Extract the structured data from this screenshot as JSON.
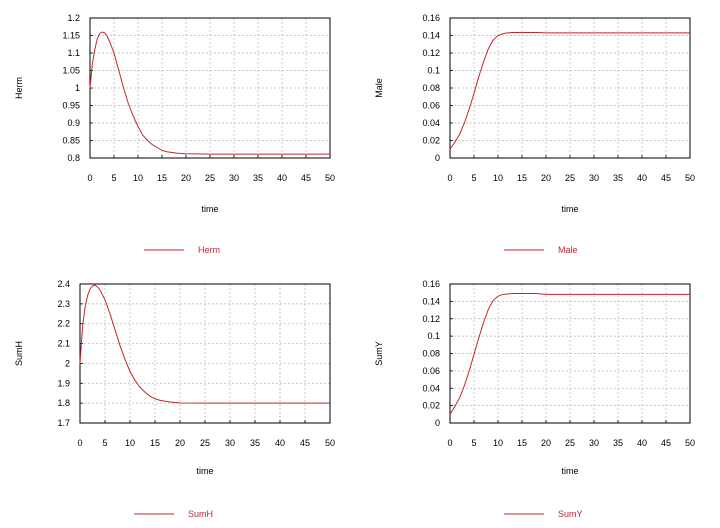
{
  "colors": {
    "series": "#c0282d",
    "frame": "#000000",
    "grid": "#b5b5b5",
    "background": "#ffffff"
  },
  "chart_data": [
    {
      "type": "line",
      "xlabel": "time",
      "ylabel": "Herm",
      "xlim": [
        0,
        50
      ],
      "ylim": [
        0.8,
        1.2
      ],
      "xticks": [
        "0",
        "5",
        "10",
        "15",
        "20",
        "25",
        "30",
        "35",
        "40",
        "45",
        "50"
      ],
      "yticks": [
        "0.8",
        "0.85",
        "0.9",
        "0.95",
        "1",
        "1.05",
        "1.1",
        "1.15",
        "1.2"
      ],
      "grid": true,
      "legend_position": "bottom",
      "series": [
        {
          "name": "Herm",
          "x": [
            0,
            0.5,
            1,
            1.5,
            2,
            2.5,
            3,
            3.5,
            4,
            5,
            6,
            7,
            8,
            9,
            10,
            11,
            12,
            13,
            14,
            15,
            16,
            18,
            20,
            25,
            30,
            40,
            50
          ],
          "y": [
            1.0,
            1.07,
            1.11,
            1.14,
            1.155,
            1.16,
            1.158,
            1.15,
            1.135,
            1.1,
            1.05,
            1.0,
            0.955,
            0.92,
            0.89,
            0.865,
            0.85,
            0.838,
            0.83,
            0.822,
            0.818,
            0.814,
            0.812,
            0.811,
            0.811,
            0.811,
            0.811
          ]
        }
      ]
    },
    {
      "type": "line",
      "xlabel": "time",
      "ylabel": "Male",
      "xlim": [
        0,
        50
      ],
      "ylim": [
        0,
        0.16
      ],
      "xticks": [
        "0",
        "5",
        "10",
        "15",
        "20",
        "25",
        "30",
        "35",
        "40",
        "45",
        "50"
      ],
      "yticks": [
        "0",
        "0.02",
        "0.04",
        "0.06",
        "0.08",
        "0.1",
        "0.12",
        "0.14",
        "0.16"
      ],
      "grid": true,
      "legend_position": "bottom",
      "series": [
        {
          "name": "Male",
          "x": [
            0,
            1,
            2,
            3,
            4,
            5,
            6,
            7,
            8,
            9,
            10,
            11,
            12,
            13,
            14,
            15,
            18,
            20,
            30,
            40,
            50
          ],
          "y": [
            0.01,
            0.018,
            0.027,
            0.04,
            0.056,
            0.074,
            0.093,
            0.11,
            0.125,
            0.135,
            0.14,
            0.142,
            0.143,
            0.1435,
            0.1435,
            0.1435,
            0.1435,
            0.143,
            0.143,
            0.143,
            0.143
          ]
        }
      ]
    },
    {
      "type": "line",
      "xlabel": "time",
      "ylabel": "SumH",
      "xlim": [
        0,
        50
      ],
      "ylim": [
        1.7,
        2.4
      ],
      "xticks": [
        "0",
        "5",
        "10",
        "15",
        "20",
        "25",
        "30",
        "35",
        "40",
        "45",
        "50"
      ],
      "yticks": [
        "1.7",
        "1.8",
        "1.9",
        "2",
        "2.1",
        "2.2",
        "2.3",
        "2.4"
      ],
      "grid": true,
      "legend_position": "bottom",
      "series": [
        {
          "name": "SumH",
          "x": [
            0,
            0.5,
            1,
            1.5,
            2,
            2.5,
            3,
            3.5,
            4,
            5,
            6,
            7,
            8,
            9,
            10,
            11,
            12,
            13,
            14,
            15,
            16,
            18,
            20,
            25,
            30,
            40,
            50
          ],
          "y": [
            2.0,
            2.18,
            2.28,
            2.34,
            2.375,
            2.39,
            2.395,
            2.385,
            2.37,
            2.32,
            2.25,
            2.17,
            2.09,
            2.02,
            1.96,
            1.915,
            1.88,
            1.855,
            1.835,
            1.822,
            1.814,
            1.806,
            1.801,
            1.8,
            1.8,
            1.8,
            1.8
          ]
        }
      ]
    },
    {
      "type": "line",
      "xlabel": "time",
      "ylabel": "SumY",
      "xlim": [
        0,
        50
      ],
      "ylim": [
        0,
        0.16
      ],
      "xticks": [
        "0",
        "5",
        "10",
        "15",
        "20",
        "25",
        "30",
        "35",
        "40",
        "45",
        "50"
      ],
      "yticks": [
        "0",
        "0.02",
        "0.04",
        "0.06",
        "0.08",
        "0.1",
        "0.12",
        "0.14",
        "0.16"
      ],
      "grid": true,
      "legend_position": "bottom",
      "series": [
        {
          "name": "SumY",
          "x": [
            0,
            1,
            2,
            3,
            4,
            5,
            6,
            7,
            8,
            9,
            10,
            11,
            12,
            13,
            14,
            15,
            18,
            20,
            30,
            40,
            50
          ],
          "y": [
            0.01,
            0.019,
            0.029,
            0.043,
            0.06,
            0.079,
            0.098,
            0.116,
            0.131,
            0.141,
            0.146,
            0.148,
            0.1485,
            0.149,
            0.149,
            0.149,
            0.149,
            0.148,
            0.148,
            0.148,
            0.148
          ]
        }
      ]
    }
  ]
}
